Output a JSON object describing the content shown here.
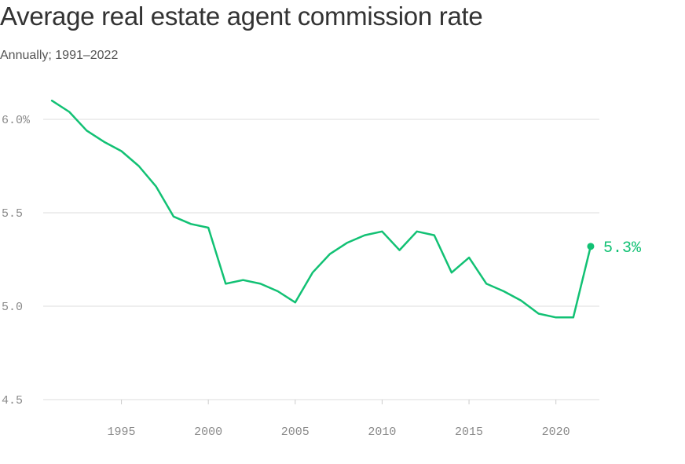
{
  "title": "Average real estate agent commission rate",
  "subtitle": "Annually; 1991–2022",
  "colors": {
    "line": "#12c174",
    "grid": "#dddddd",
    "tick_text": "#8a8a8a",
    "title": "#333333"
  },
  "chart_data": {
    "type": "line",
    "title": "Average real estate agent commission rate",
    "subtitle": "Annually; 1991–2022",
    "xlabel": "",
    "ylabel": "",
    "xlim": [
      1990.5,
      2022.5
    ],
    "ylim": [
      4.5,
      6.0
    ],
    "grid": true,
    "y_ticks": [
      {
        "value": 6.0,
        "label": "6.0%"
      },
      {
        "value": 5.5,
        "label": "5.5"
      },
      {
        "value": 5.0,
        "label": "5.0"
      },
      {
        "value": 4.5,
        "label": "4.5"
      }
    ],
    "x_ticks": [
      {
        "value": 1995,
        "label": "1995"
      },
      {
        "value": 2000,
        "label": "2000"
      },
      {
        "value": 2005,
        "label": "2005"
      },
      {
        "value": 2010,
        "label": "2010"
      },
      {
        "value": 2015,
        "label": "2015"
      },
      {
        "value": 2020,
        "label": "2020"
      }
    ],
    "series": [
      {
        "x": [
          1991,
          1992,
          1993,
          1994,
          1995,
          1996,
          1997,
          1998,
          1999,
          2000,
          2001,
          2002,
          2003,
          2004,
          2005,
          2006,
          2007,
          2008,
          2009,
          2010,
          2011,
          2012,
          2013,
          2014,
          2015,
          2016,
          2017,
          2018,
          2019,
          2020,
          2021,
          2022
        ],
        "values": [
          6.1,
          6.04,
          5.94,
          5.88,
          5.83,
          5.75,
          5.64,
          5.48,
          5.44,
          5.42,
          5.12,
          5.14,
          5.12,
          5.08,
          5.02,
          5.18,
          5.28,
          5.34,
          5.38,
          5.4,
          5.3,
          5.4,
          5.38,
          5.18,
          5.26,
          5.12,
          5.08,
          5.03,
          4.96,
          4.94,
          4.94,
          5.32
        ]
      }
    ],
    "end_label": "5.3%"
  }
}
